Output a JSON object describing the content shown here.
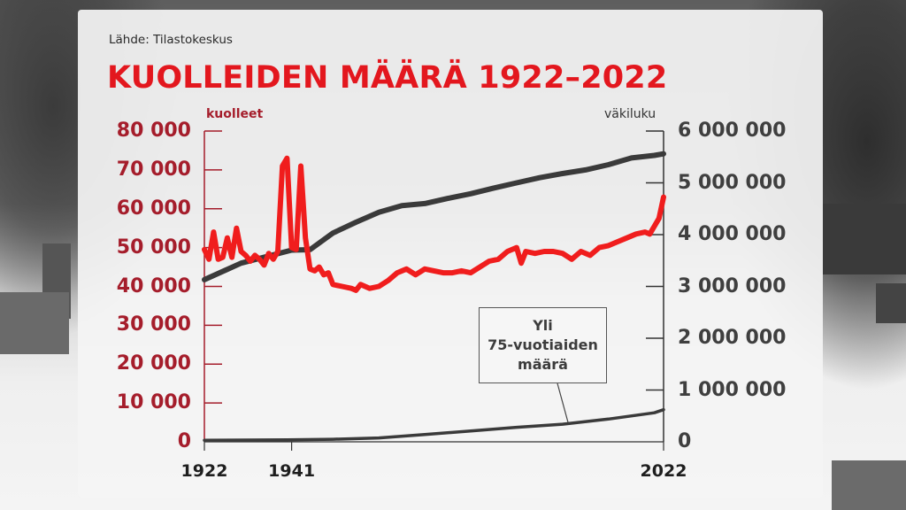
{
  "source": "Lähde: Tilastokeskus",
  "title": "KUOLLEIDEN MÄÄRÄ 1922–2022",
  "left_axis_title": "kuolleet",
  "right_axis_title": "väkiluku",
  "left_ticks": [
    "80 000",
    "70 000",
    "60 000",
    "50 000",
    "40 000",
    "30 000",
    "20 000",
    "10 000",
    "0"
  ],
  "right_ticks": [
    "6 000 000",
    "5 000 000",
    "4 000 000",
    "3 000 000",
    "2 000 000",
    "1 000 000",
    "0"
  ],
  "x_ticks": [
    "1922",
    "1941",
    "2022"
  ],
  "annotation": {
    "line1": "Yli",
    "line2": "75-vuotiaiden",
    "line3": "määrä"
  },
  "colors": {
    "deaths": "#f01d1d",
    "population": "#3a3a3a",
    "title": "#e3171e",
    "left_axis": "#a51d2b"
  },
  "chart_data": {
    "type": "line",
    "title": "KUOLLEIDEN MÄÄRÄ 1922–2022",
    "subtitle": "Lähde: Tilastokeskus",
    "xlabel": "",
    "ylabel_left": "kuolleet",
    "ylabel_right": "väkiluku",
    "ylim_left": [
      0,
      80000
    ],
    "ylim_right": [
      0,
      6000000
    ],
    "xlim": [
      1922,
      2022
    ],
    "x_tick_labels": [
      "1922",
      "1941",
      "2022"
    ],
    "grid": false,
    "legend": "none (annotation box labels over-75 series)",
    "series": [
      {
        "name": "kuolleet",
        "axis": "left",
        "color": "#f01d1d",
        "x": [
          1922,
          1923,
          1924,
          1925,
          1926,
          1927,
          1928,
          1929,
          1930,
          1931,
          1932,
          1933,
          1934,
          1935,
          1936,
          1937,
          1938,
          1939,
          1940,
          1941,
          1942,
          1943,
          1944,
          1945,
          1946,
          1947,
          1948,
          1949,
          1950,
          1952,
          1954,
          1955,
          1956,
          1958,
          1960,
          1962,
          1964,
          1966,
          1968,
          1970,
          1972,
          1974,
          1976,
          1978,
          1980,
          1982,
          1984,
          1986,
          1988,
          1990,
          1991,
          1992,
          1994,
          1996,
          1998,
          2000,
          2002,
          2004,
          2006,
          2008,
          2010,
          2012,
          2014,
          2016,
          2018,
          2019,
          2020,
          2021,
          2022
        ],
        "values": [
          49500,
          47000,
          54000,
          47000,
          47500,
          52500,
          47500,
          55000,
          49000,
          48000,
          46500,
          48000,
          47000,
          45500,
          48500,
          47000,
          49000,
          71000,
          73000,
          50000,
          49500,
          71000,
          52500,
          44500,
          44000,
          45000,
          43000,
          43500,
          40500,
          40000,
          39500,
          39000,
          40500,
          39500,
          40000,
          41500,
          43500,
          44500,
          43000,
          44500,
          44000,
          43500,
          43500,
          44000,
          43500,
          45000,
          46500,
          47000,
          49000,
          50000,
          46000,
          49000,
          48500,
          49000,
          49000,
          48500,
          47000,
          49000,
          48000,
          50000,
          50500,
          51500,
          52500,
          53500,
          54000,
          53500,
          55500,
          57500,
          63000
        ]
      },
      {
        "name": "väkiluku",
        "axis": "right",
        "color": "#3a3a3a",
        "x": [
          1922,
          1930,
          1941,
          1945,
          1950,
          1955,
          1960,
          1965,
          1970,
          1975,
          1980,
          1985,
          1990,
          1995,
          2000,
          2005,
          2010,
          2015,
          2020,
          2022
        ],
        "values": [
          3130000,
          3450000,
          3700000,
          3710000,
          4030000,
          4240000,
          4430000,
          4560000,
          4600000,
          4700000,
          4790000,
          4900000,
          5000000,
          5100000,
          5180000,
          5250000,
          5350000,
          5480000,
          5530000,
          5560000
        ]
      },
      {
        "name": "Yli 75-vuotiaiden määrä",
        "axis": "right",
        "color": "#3a3a3a",
        "x": [
          1922,
          1940,
          1950,
          1960,
          1970,
          1980,
          1990,
          2000,
          2010,
          2020,
          2022
        ],
        "values": [
          30000,
          40000,
          50000,
          75000,
          140000,
          210000,
          280000,
          340000,
          440000,
          560000,
          620000
        ]
      }
    ]
  }
}
